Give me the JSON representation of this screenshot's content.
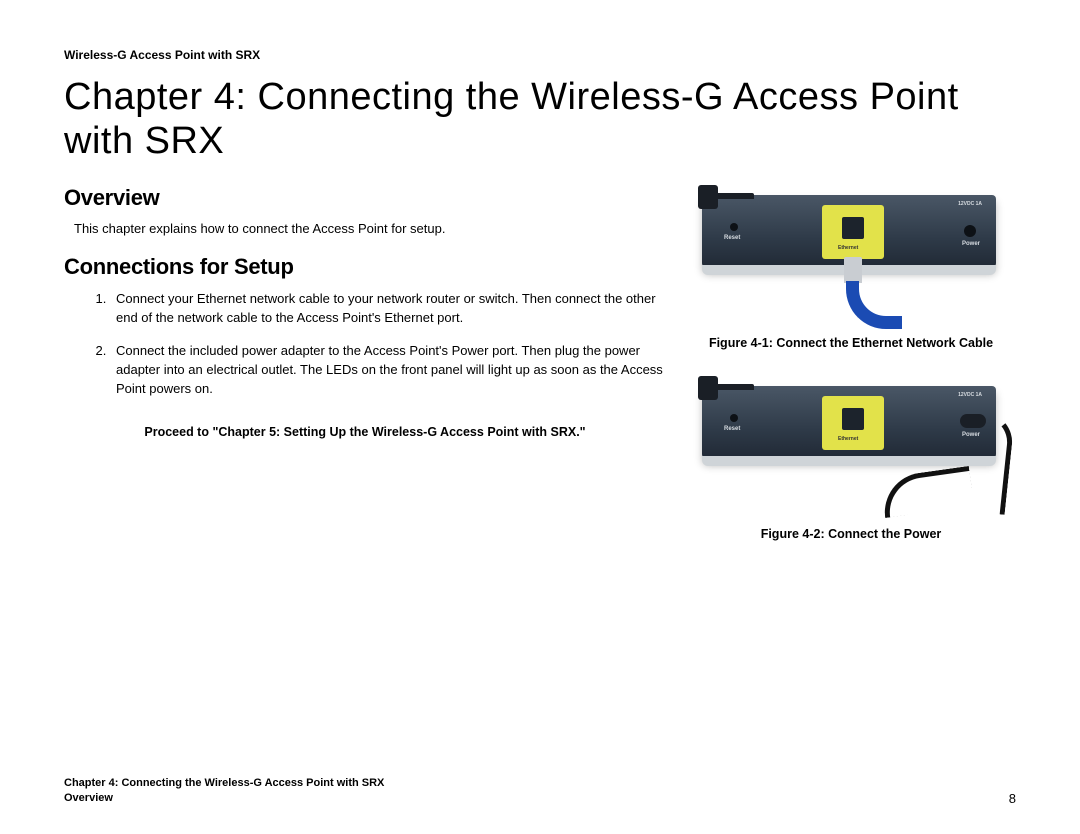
{
  "header": {
    "product_title": "Wireless-G Access Point with SRX"
  },
  "chapter": {
    "title": "Chapter 4: Connecting the Wireless-G Access Point with SRX"
  },
  "sections": {
    "overview": {
      "heading": "Overview",
      "intro": "This chapter explains how to connect the Access Point for setup."
    },
    "connections": {
      "heading": "Connections for Setup",
      "steps": [
        "Connect your Ethernet network cable to your network router or switch. Then connect the other end of the network cable to the Access Point's Ethernet port.",
        "Connect the included power adapter to the Access Point's Power port. Then plug the power adapter into an electrical outlet. The LEDs on the front panel will light up as soon as the Access Point powers on."
      ],
      "proceed": "Proceed to \"Chapter 5: Setting Up the Wireless-G Access Point with SRX.\""
    }
  },
  "figures": {
    "fig1": {
      "caption": "Figure 4-1: Connect the Ethernet Network Cable",
      "labels": {
        "reset": "Reset",
        "ethernet": "Ethernet",
        "power": "Power",
        "vdc": "12VDC 1A"
      }
    },
    "fig2": {
      "caption": "Figure 4-2: Connect the Power",
      "labels": {
        "reset": "Reset",
        "ethernet": "Ethernet",
        "power": "Power",
        "vdc": "12VDC 1A"
      }
    }
  },
  "footer": {
    "line1": "Chapter 4: Connecting the Wireless-G Access Point with SRX",
    "line2": "Overview",
    "page_number": "8"
  },
  "colors": {
    "text": "#000000",
    "device_body": "#2e3a48",
    "device_lip": "#cfd4d8",
    "yellow_plate": "#e2e24a",
    "eth_cable": "#1b4bb3",
    "power_cable": "#111111"
  }
}
